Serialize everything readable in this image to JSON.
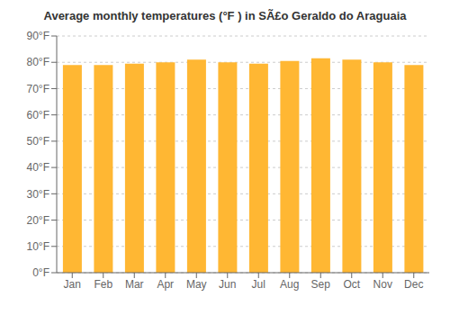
{
  "chart_data": {
    "type": "bar",
    "title": "Average monthly temperatures (°F ) in SÃ£o Geraldo do Araguaia",
    "categories": [
      "Jan",
      "Feb",
      "Mar",
      "Apr",
      "May",
      "Jun",
      "Jul",
      "Aug",
      "Sep",
      "Oct",
      "Nov",
      "Dec"
    ],
    "values": [
      79,
      79,
      79.5,
      80,
      81,
      80,
      79.5,
      80.5,
      81.5,
      81,
      80,
      79
    ],
    "color": "#FFB733",
    "ylim": [
      0,
      90
    ],
    "yticks": [
      {
        "value": 0,
        "label": "0°F"
      },
      {
        "value": 10,
        "label": "10°F"
      },
      {
        "value": 20,
        "label": "20°F"
      },
      {
        "value": 30,
        "label": "30°F"
      },
      {
        "value": 40,
        "label": "40°F"
      },
      {
        "value": 50,
        "label": "50°F"
      },
      {
        "value": 60,
        "label": "60°F"
      },
      {
        "value": 70,
        "label": "70°F"
      },
      {
        "value": 80,
        "label": "80°F"
      },
      {
        "value": 90,
        "label": "90°F"
      }
    ],
    "grid": true
  }
}
